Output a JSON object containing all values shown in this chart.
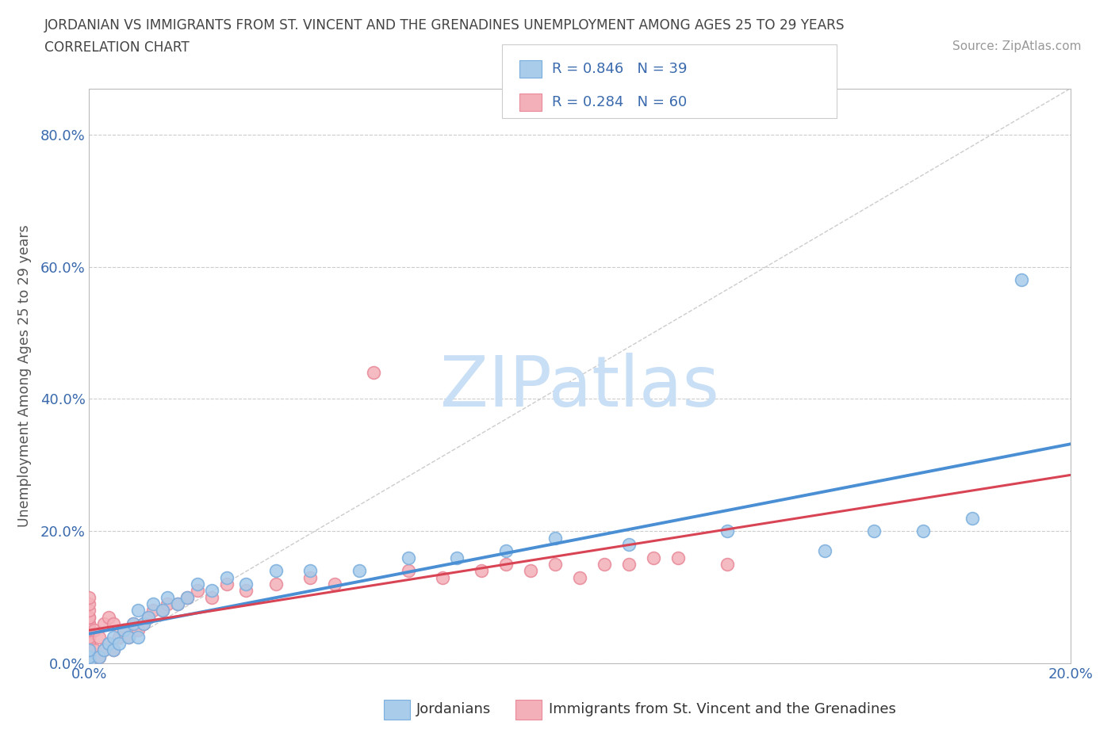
{
  "title_line1": "JORDANIAN VS IMMIGRANTS FROM ST. VINCENT AND THE GRENADINES UNEMPLOYMENT AMONG AGES 25 TO 29 YEARS",
  "title_line2": "CORRELATION CHART",
  "source_text": "Source: ZipAtlas.com",
  "ylabel": "Unemployment Among Ages 25 to 29 years",
  "xmin": 0.0,
  "xmax": 0.2,
  "ymin": 0.0,
  "ymax": 0.87,
  "ytick_values": [
    0.0,
    0.2,
    0.4,
    0.6,
    0.8
  ],
  "ytick_labels": [
    "0.0%",
    "20.0%",
    "40.0%",
    "60.0%",
    "80.0%"
  ],
  "xtick_values": [
    0.0,
    0.2
  ],
  "xtick_labels": [
    "0.0%",
    "20.0%"
  ],
  "blue_color": "#a8ccea",
  "pink_color": "#f4b0b8",
  "blue_edge_color": "#7aaedd",
  "pink_edge_color": "#e88898",
  "blue_line_color": "#4a8fd4",
  "pink_line_color": "#d94455",
  "diag_color": "#cccccc",
  "watermark_color": "#c8dff5",
  "legend_R_blue": "R = 0.846",
  "legend_N_blue": "N = 39",
  "legend_R_pink": "R = 0.284",
  "legend_N_pink": "N = 60",
  "blue_x": [
    0.0,
    0.0,
    0.0,
    0.002,
    0.003,
    0.004,
    0.005,
    0.005,
    0.006,
    0.007,
    0.008,
    0.009,
    0.01,
    0.01,
    0.011,
    0.012,
    0.013,
    0.015,
    0.016,
    0.018,
    0.02,
    0.022,
    0.025,
    0.028,
    0.032,
    0.038,
    0.045,
    0.055,
    0.065,
    0.075,
    0.085,
    0.095,
    0.11,
    0.13,
    0.15,
    0.16,
    0.17,
    0.18,
    0.19
  ],
  "blue_y": [
    0.0,
    0.01,
    0.02,
    0.01,
    0.02,
    0.03,
    0.02,
    0.04,
    0.03,
    0.05,
    0.04,
    0.06,
    0.04,
    0.08,
    0.06,
    0.07,
    0.09,
    0.08,
    0.1,
    0.09,
    0.1,
    0.12,
    0.11,
    0.13,
    0.12,
    0.14,
    0.14,
    0.14,
    0.16,
    0.16,
    0.17,
    0.19,
    0.18,
    0.2,
    0.17,
    0.2,
    0.2,
    0.22,
    0.58
  ],
  "pink_x": [
    0.0,
    0.0,
    0.0,
    0.0,
    0.0,
    0.0,
    0.0,
    0.0,
    0.0,
    0.0,
    0.0,
    0.0,
    0.0,
    0.0,
    0.0,
    0.0,
    0.0,
    0.0,
    0.001,
    0.001,
    0.002,
    0.002,
    0.003,
    0.003,
    0.004,
    0.004,
    0.005,
    0.005,
    0.006,
    0.007,
    0.008,
    0.009,
    0.01,
    0.011,
    0.012,
    0.013,
    0.015,
    0.016,
    0.018,
    0.02,
    0.022,
    0.025,
    0.028,
    0.032,
    0.038,
    0.045,
    0.05,
    0.058,
    0.065,
    0.072,
    0.08,
    0.085,
    0.09,
    0.095,
    0.1,
    0.105,
    0.11,
    0.115,
    0.12,
    0.13
  ],
  "pink_y": [
    0.0,
    0.0,
    0.0,
    0.01,
    0.01,
    0.02,
    0.02,
    0.03,
    0.03,
    0.04,
    0.05,
    0.06,
    0.06,
    0.07,
    0.07,
    0.08,
    0.09,
    0.1,
    0.02,
    0.05,
    0.01,
    0.04,
    0.02,
    0.06,
    0.03,
    0.07,
    0.02,
    0.06,
    0.04,
    0.05,
    0.04,
    0.06,
    0.05,
    0.06,
    0.07,
    0.08,
    0.08,
    0.09,
    0.09,
    0.1,
    0.11,
    0.1,
    0.12,
    0.11,
    0.12,
    0.13,
    0.12,
    0.44,
    0.14,
    0.13,
    0.14,
    0.15,
    0.14,
    0.15,
    0.13,
    0.15,
    0.15,
    0.16,
    0.16,
    0.15
  ]
}
